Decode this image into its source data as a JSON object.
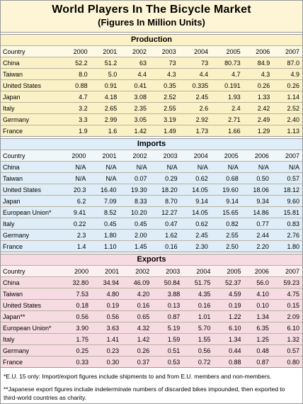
{
  "header": {
    "title": "World Players In The Bicycle Market",
    "subtitle": "(Figures In Million Units)"
  },
  "sections": [
    {
      "title": "Production",
      "columns": [
        "Country",
        "2000",
        "2001",
        "2002",
        "2003",
        "2004",
        "2005",
        "2006",
        "2007"
      ],
      "rows": [
        [
          "China",
          "52.2",
          "51.2",
          "63",
          "73",
          "73",
          "80.73",
          "84.9",
          "87.0"
        ],
        [
          "Taiwan",
          "8.0",
          "5.0",
          "4.4",
          "4.3",
          "4.4",
          "4.7",
          "4.3",
          "4.9"
        ],
        [
          "United States",
          "0.88",
          "0.91",
          "0.41",
          "0.35",
          "0.335",
          "0.191",
          "0.26",
          "0.26"
        ],
        [
          "Japan",
          "4.7",
          "4.18",
          "3.08",
          "2.52",
          "2.45",
          "1.93",
          "1.33",
          "1.14"
        ],
        [
          "Italy",
          "3.2",
          "2.65",
          "2.35",
          "2.55",
          "2.6",
          "2.4",
          "2.42",
          "2.52"
        ],
        [
          "Germany",
          "3.3",
          "2.99",
          "3.05",
          "3.19",
          "2.92",
          "2.71",
          "2.49",
          "2.40"
        ],
        [
          "France",
          "1.9",
          "1.6",
          "1.42",
          "1.49",
          "1.73",
          "1.66",
          "1.29",
          "1.13"
        ]
      ]
    },
    {
      "title": "Imports",
      "columns": [
        "Country",
        "2000",
        "2001",
        "2002",
        "2003",
        "2004",
        "2005",
        "2006",
        "2007"
      ],
      "rows": [
        [
          "China",
          "N/A",
          "N/A",
          "N/A",
          "N/A",
          "N/A",
          "N/A",
          "N/A",
          "N/A"
        ],
        [
          "Taiwan",
          "N/A",
          "N/A",
          "0.07",
          "0.29",
          "0.62",
          "0.68",
          "0.50",
          "0.57"
        ],
        [
          "United States",
          "20.3",
          "16.40",
          "19.30",
          "18.20",
          "14.05",
          "19.60",
          "18.06",
          "18.12"
        ],
        [
          "Japan",
          "6.2",
          "7.09",
          "8.33",
          "8.70",
          "9.14",
          "9.14",
          "9.34",
          "9.60"
        ],
        [
          "European Union*",
          "9.41",
          "8.52",
          "10.20",
          "12.27",
          "14.05",
          "15.65",
          "14.86",
          "15.81"
        ],
        [
          "Italy",
          "0.22",
          "0.45",
          "0.45",
          "0.47",
          "0.62",
          "0.82",
          "0.77",
          "0.83"
        ],
        [
          "Germany",
          "2.3",
          "1.80",
          "2.00",
          "1.62",
          "2.45",
          "2.55",
          "2.44",
          "2.76"
        ],
        [
          "France",
          "1.4",
          "1.10",
          "1.45",
          "0.16",
          "2.30",
          "2.50",
          "2.20",
          "1.80"
        ]
      ]
    },
    {
      "title": "Exports",
      "columns": [
        "Country",
        "2000",
        "2001",
        "2002",
        "2003",
        "2004",
        "2005",
        "2006",
        "2007"
      ],
      "rows": [
        [
          "China",
          "32.80",
          "34.94",
          "46.09",
          "50.84",
          "51.75",
          "52.37",
          "56.0",
          "59.23"
        ],
        [
          "Taiwan",
          "7.53",
          "4.80",
          "4.20",
          "3.88",
          "4.35",
          "4.59",
          "4.10",
          "4.75"
        ],
        [
          "United States",
          "0.18",
          "0.19",
          "0.16",
          "0.13",
          "0.16",
          "0.19",
          "0.10",
          "0.15"
        ],
        [
          "Japan**",
          "0.56",
          "0.56",
          "0.65",
          "0.87",
          "1.01",
          "1.22",
          "1.34",
          "2.09"
        ],
        [
          "European Union*",
          "3.90",
          "3.63",
          "4.32",
          "5.19",
          "5.70",
          "6.10",
          "6.35",
          "6.10"
        ],
        [
          "Italy",
          "1.75",
          "1.41",
          "1.42",
          "1.59",
          "1.55",
          "1.34",
          "1.25",
          "1.32"
        ],
        [
          "Germany",
          "0.25",
          "0.23",
          "0.26",
          "0.51",
          "0.56",
          "0.44",
          "0.48",
          "0.57"
        ],
        [
          "France",
          "0.33",
          "0.30",
          "0.37",
          "0.53",
          "0.72",
          "0.88",
          "0.87",
          "0.80"
        ]
      ]
    }
  ],
  "footnotes": [
    "*E.U. 15 only: Import/export figures include shipments to and from E.U. members and non-members.",
    "**Japanese export figures include indeterminate numbers of discarded bikes impounded, then exported to third-world countries as charity."
  ]
}
